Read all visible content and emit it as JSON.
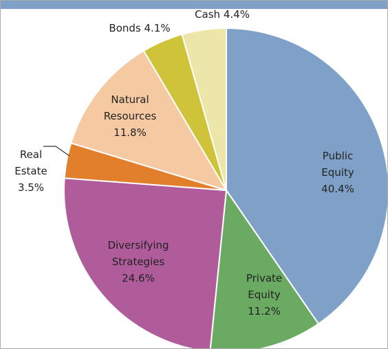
{
  "chart_data": {
    "type": "pie",
    "categories": [
      "Public Equity",
      "Private Equity",
      "Diversifying Strategies",
      "Real Estate",
      "Natural Resources",
      "Bonds",
      "Cash"
    ],
    "values": [
      40.4,
      11.2,
      24.6,
      3.5,
      11.8,
      4.1,
      4.4
    ],
    "value_labels": [
      "40.4%",
      "11.2%",
      "24.6%",
      "3.5%",
      "11.8%",
      "4.1%",
      "4.4%"
    ],
    "colors": [
      "#7fa1c8",
      "#6aaa62",
      "#b05c9b",
      "#e27f2a",
      "#f5c9a2",
      "#cfc33a",
      "#ece7a8"
    ]
  }
}
